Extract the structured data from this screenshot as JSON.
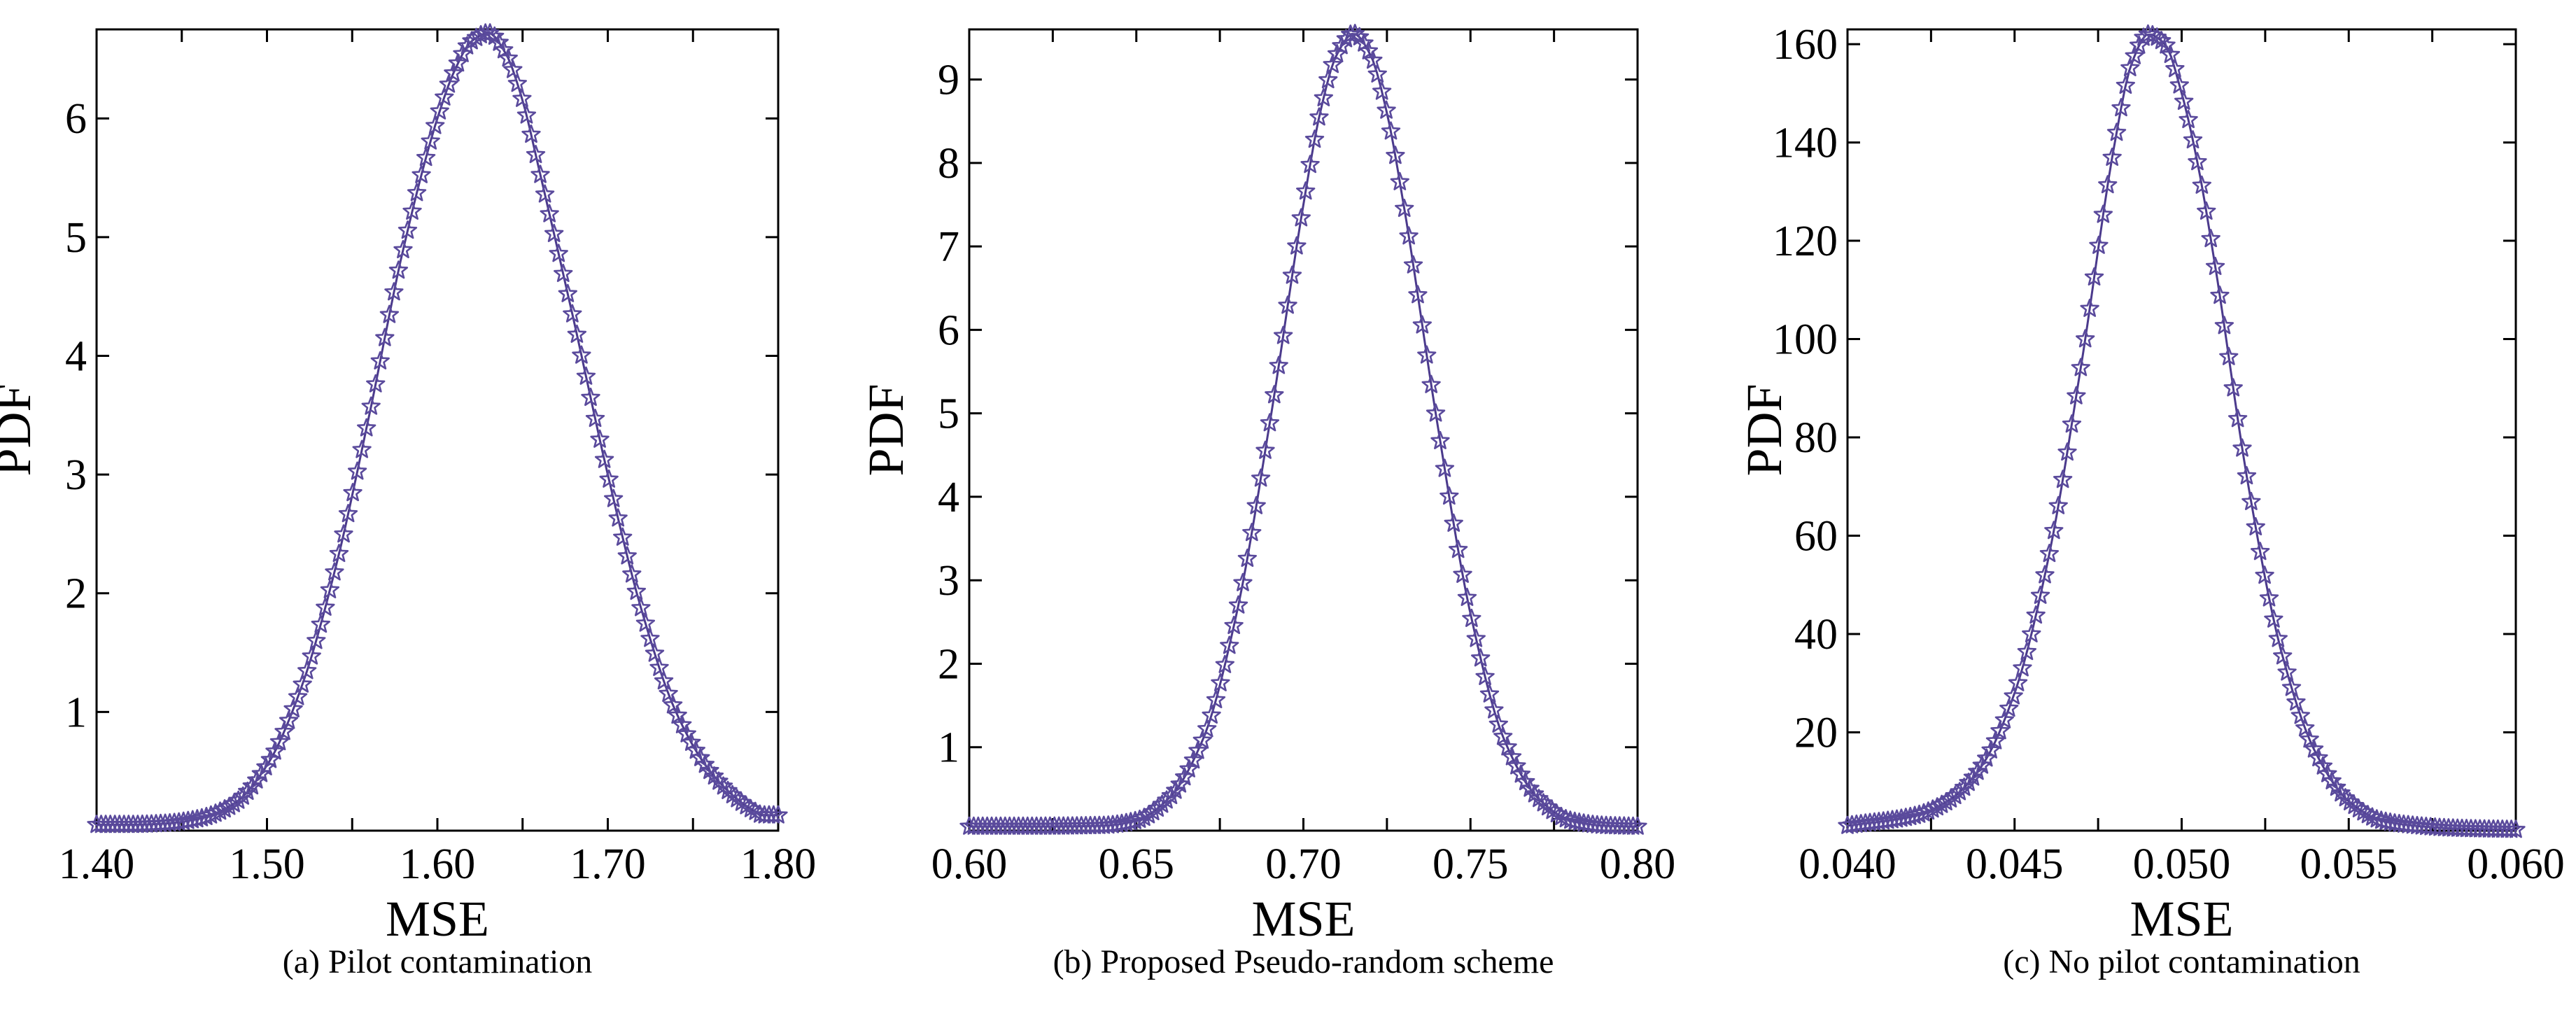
{
  "chart_data": [
    {
      "type": "line",
      "caption": "(a) Pilot contamination",
      "xlabel": "MSE",
      "ylabel": "PDF",
      "xlim": [
        1.4,
        1.8
      ],
      "ylim": [
        0,
        6.75
      ],
      "xticks": [
        1.4,
        1.45,
        1.5,
        1.55,
        1.6,
        1.65,
        1.7,
        1.75,
        1.8
      ],
      "xtick_labels": [
        "1.40",
        "",
        "1.50",
        "",
        "1.60",
        "",
        "1.70",
        "",
        "1.80"
      ],
      "yticks": [
        1,
        2,
        3,
        4,
        5,
        6
      ],
      "ytick_labels": [
        "1",
        "2",
        "3",
        "4",
        "5",
        "6"
      ],
      "series": [
        {
          "name": "PDF",
          "marker": "star",
          "x": [
            1.4,
            1.42,
            1.44,
            1.46,
            1.48,
            1.5,
            1.52,
            1.54,
            1.56,
            1.58,
            1.6,
            1.61,
            1.62,
            1.63,
            1.64,
            1.65,
            1.66,
            1.68,
            1.7,
            1.72,
            1.74,
            1.76,
            1.78,
            1.79
          ],
          "y": [
            0.05,
            0.05,
            0.06,
            0.1,
            0.22,
            0.55,
            1.2,
            2.2,
            3.5,
            4.9,
            6.0,
            6.4,
            6.65,
            6.72,
            6.55,
            6.15,
            5.55,
            4.3,
            3.0,
            1.85,
            1.0,
            0.5,
            0.22,
            0.13
          ]
        }
      ]
    },
    {
      "type": "line",
      "caption": "(b) Proposed Pseudo-random scheme",
      "xlabel": "MSE",
      "ylabel": "PDF",
      "xlim": [
        0.6,
        0.8
      ],
      "ylim": [
        0,
        9.6
      ],
      "xticks": [
        0.6,
        0.625,
        0.65,
        0.675,
        0.7,
        0.725,
        0.75,
        0.775,
        0.8
      ],
      "xtick_labels": [
        "0.60",
        "",
        "0.65",
        "",
        "0.70",
        "",
        "0.75",
        "",
        "0.80"
      ],
      "yticks": [
        1,
        2,
        3,
        4,
        5,
        6,
        7,
        8,
        9
      ],
      "ytick_labels": [
        "1",
        "2",
        "3",
        "4",
        "5",
        "6",
        "7",
        "8",
        "9"
      ],
      "series": [
        {
          "name": "PDF",
          "marker": "star",
          "x": [
            0.6,
            0.62,
            0.64,
            0.65,
            0.66,
            0.67,
            0.68,
            0.69,
            0.7,
            0.705,
            0.71,
            0.715,
            0.72,
            0.725,
            0.73,
            0.74,
            0.75,
            0.76,
            0.77,
            0.78,
            0.79,
            0.798
          ],
          "y": [
            0.05,
            0.05,
            0.06,
            0.12,
            0.4,
            1.1,
            2.6,
            4.9,
            7.5,
            8.6,
            9.3,
            9.55,
            9.3,
            8.6,
            7.5,
            4.9,
            2.6,
            1.1,
            0.4,
            0.12,
            0.06,
            0.05
          ]
        }
      ]
    },
    {
      "type": "line",
      "caption": "(c) No pilot contamination",
      "xlabel": "MSE",
      "ylabel": "PDF",
      "xlim": [
        0.04,
        0.06
      ],
      "ylim": [
        0,
        163
      ],
      "xticks": [
        0.04,
        0.0425,
        0.045,
        0.0475,
        0.05,
        0.0525,
        0.055,
        0.0575,
        0.06
      ],
      "xtick_labels": [
        "0.040",
        "",
        "0.045",
        "",
        "0.050",
        "",
        "0.055",
        "",
        "0.060"
      ],
      "yticks": [
        20,
        40,
        60,
        80,
        100,
        120,
        140,
        160
      ],
      "ytick_labels": [
        "20",
        "40",
        "60",
        "80",
        "100",
        "120",
        "140",
        "160"
      ],
      "series": [
        {
          "name": "PDF",
          "marker": "star",
          "x": [
            0.04,
            0.042,
            0.043,
            0.044,
            0.045,
            0.046,
            0.047,
            0.048,
            0.0485,
            0.049,
            0.0495,
            0.05,
            0.0505,
            0.051,
            0.052,
            0.053,
            0.054,
            0.055,
            0.056,
            0.057,
            0.058,
            0.059,
            0.06
          ],
          "y": [
            1,
            3,
            6,
            13,
            28,
            55,
            95,
            140,
            156,
            162,
            160,
            150,
            135,
            115,
            70,
            36,
            16,
            6,
            2,
            1,
            0.5,
            0.3,
            0.2
          ]
        }
      ]
    }
  ],
  "style": {
    "line_color": "#4b3a8c",
    "marker_color": "#5a4a9c"
  }
}
